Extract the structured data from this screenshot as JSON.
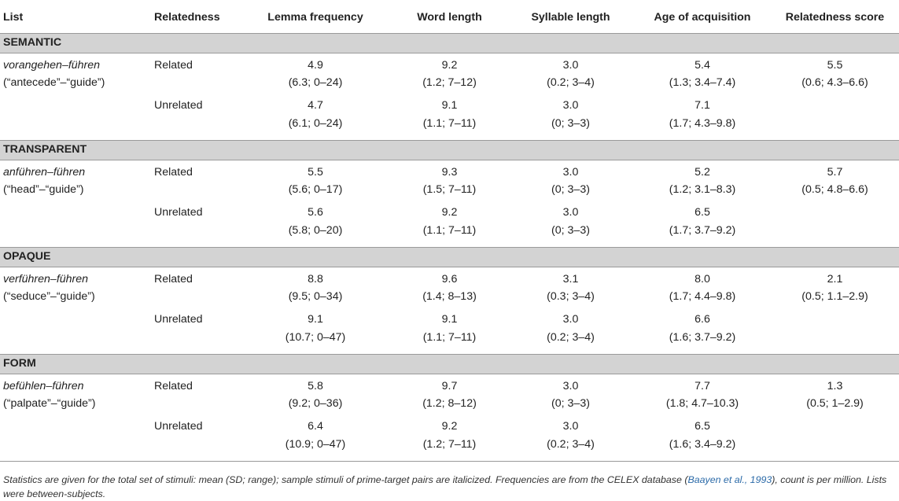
{
  "headers": {
    "list": "List",
    "relatedness": "Relatedness",
    "lemma_frequency": "Lemma frequency",
    "word_length": "Word length",
    "syllable_length": "Syllable length",
    "age_of_acquisition": "Age of acquisition",
    "relatedness_score": "Relatedness score"
  },
  "sections": [
    {
      "name": "SEMANTIC",
      "pair": "vorangehen–führen",
      "gloss": "(“antecede”–“guide”)",
      "related": {
        "label": "Related",
        "lemma": "4.9",
        "lemma_sd": "(6.3; 0–24)",
        "word": "9.2",
        "word_sd": "(1.2; 7–12)",
        "syll": "3.0",
        "syll_sd": "(0.2; 3–4)",
        "aoa": "5.4",
        "aoa_sd": "(1.3; 3.4–7.4)",
        "score": "5.5",
        "score_sd": "(0.6; 4.3–6.6)"
      },
      "unrelated": {
        "label": "Unrelated",
        "lemma": "4.7",
        "lemma_sd": "(6.1; 0–24)",
        "word": "9.1",
        "word_sd": "(1.1; 7–11)",
        "syll": "3.0",
        "syll_sd": "(0; 3–3)",
        "aoa": "7.1",
        "aoa_sd": "(1.7; 4.3–9.8)"
      }
    },
    {
      "name": "TRANSPARENT",
      "pair": "anführen–führen",
      "gloss": "(“head”–“guide”)",
      "related": {
        "label": "Related",
        "lemma": "5.5",
        "lemma_sd": "(5.6; 0–17)",
        "word": "9.3",
        "word_sd": "(1.5; 7–11)",
        "syll": "3.0",
        "syll_sd": "(0; 3–3)",
        "aoa": "5.2",
        "aoa_sd": "(1.2; 3.1–8.3)",
        "score": "5.7",
        "score_sd": "(0.5; 4.8–6.6)"
      },
      "unrelated": {
        "label": "Unrelated",
        "lemma": "5.6",
        "lemma_sd": "(5.8; 0–20)",
        "word": "9.2",
        "word_sd": "(1.1; 7–11)",
        "syll": "3.0",
        "syll_sd": "(0; 3–3)",
        "aoa": "6.5",
        "aoa_sd": "(1.7; 3.7–9.2)"
      }
    },
    {
      "name": "OPAQUE",
      "pair": "verführen–führen",
      "gloss": "(“seduce”–“guide”)",
      "related": {
        "label": "Related",
        "lemma": "8.8",
        "lemma_sd": "(9.5; 0–34)",
        "word": "9.6",
        "word_sd": "(1.4; 8–13)",
        "syll": "3.1",
        "syll_sd": "(0.3; 3–4)",
        "aoa": "8.0",
        "aoa_sd": "(1.7; 4.4–9.8)",
        "score": "2.1",
        "score_sd": "(0.5; 1.1–2.9)"
      },
      "unrelated": {
        "label": "Unrelated",
        "lemma": "9.1",
        "lemma_sd": "(10.7; 0–47)",
        "word": "9.1",
        "word_sd": "(1.1; 7–11)",
        "syll": "3.0",
        "syll_sd": "(0.2; 3–4)",
        "aoa": "6.6",
        "aoa_sd": "(1.6; 3.7–9.2)"
      }
    },
    {
      "name": "FORM",
      "pair": "befühlen–führen",
      "gloss": "(“palpate”–“guide”)",
      "related": {
        "label": "Related",
        "lemma": "5.8",
        "lemma_sd": "(9.2; 0–36)",
        "word": "9.7",
        "word_sd": "(1.2; 8–12)",
        "syll": "3.0",
        "syll_sd": "(0; 3–3)",
        "aoa": "7.7",
        "aoa_sd": "(1.8; 4.7–10.3)",
        "score": "1.3",
        "score_sd": "(0.5; 1–2.9)"
      },
      "unrelated": {
        "label": "Unrelated",
        "lemma": "6.4",
        "lemma_sd": "(10.9; 0–47)",
        "word": "9.2",
        "word_sd": "(1.2; 7–11)",
        "syll": "3.0",
        "syll_sd": "(0.2; 3–4)",
        "aoa": "6.5",
        "aoa_sd": "(1.6; 3.4–9.2)"
      }
    }
  ],
  "footnote": {
    "text_before": "Statistics are given for the total set of stimuli: mean (SD; range); sample stimuli of prime-target pairs are italicized. Frequencies are from the CELEX database (",
    "citation": "Baayen et al., 1993",
    "text_after": "), count is per million. Lists were between-subjects."
  }
}
